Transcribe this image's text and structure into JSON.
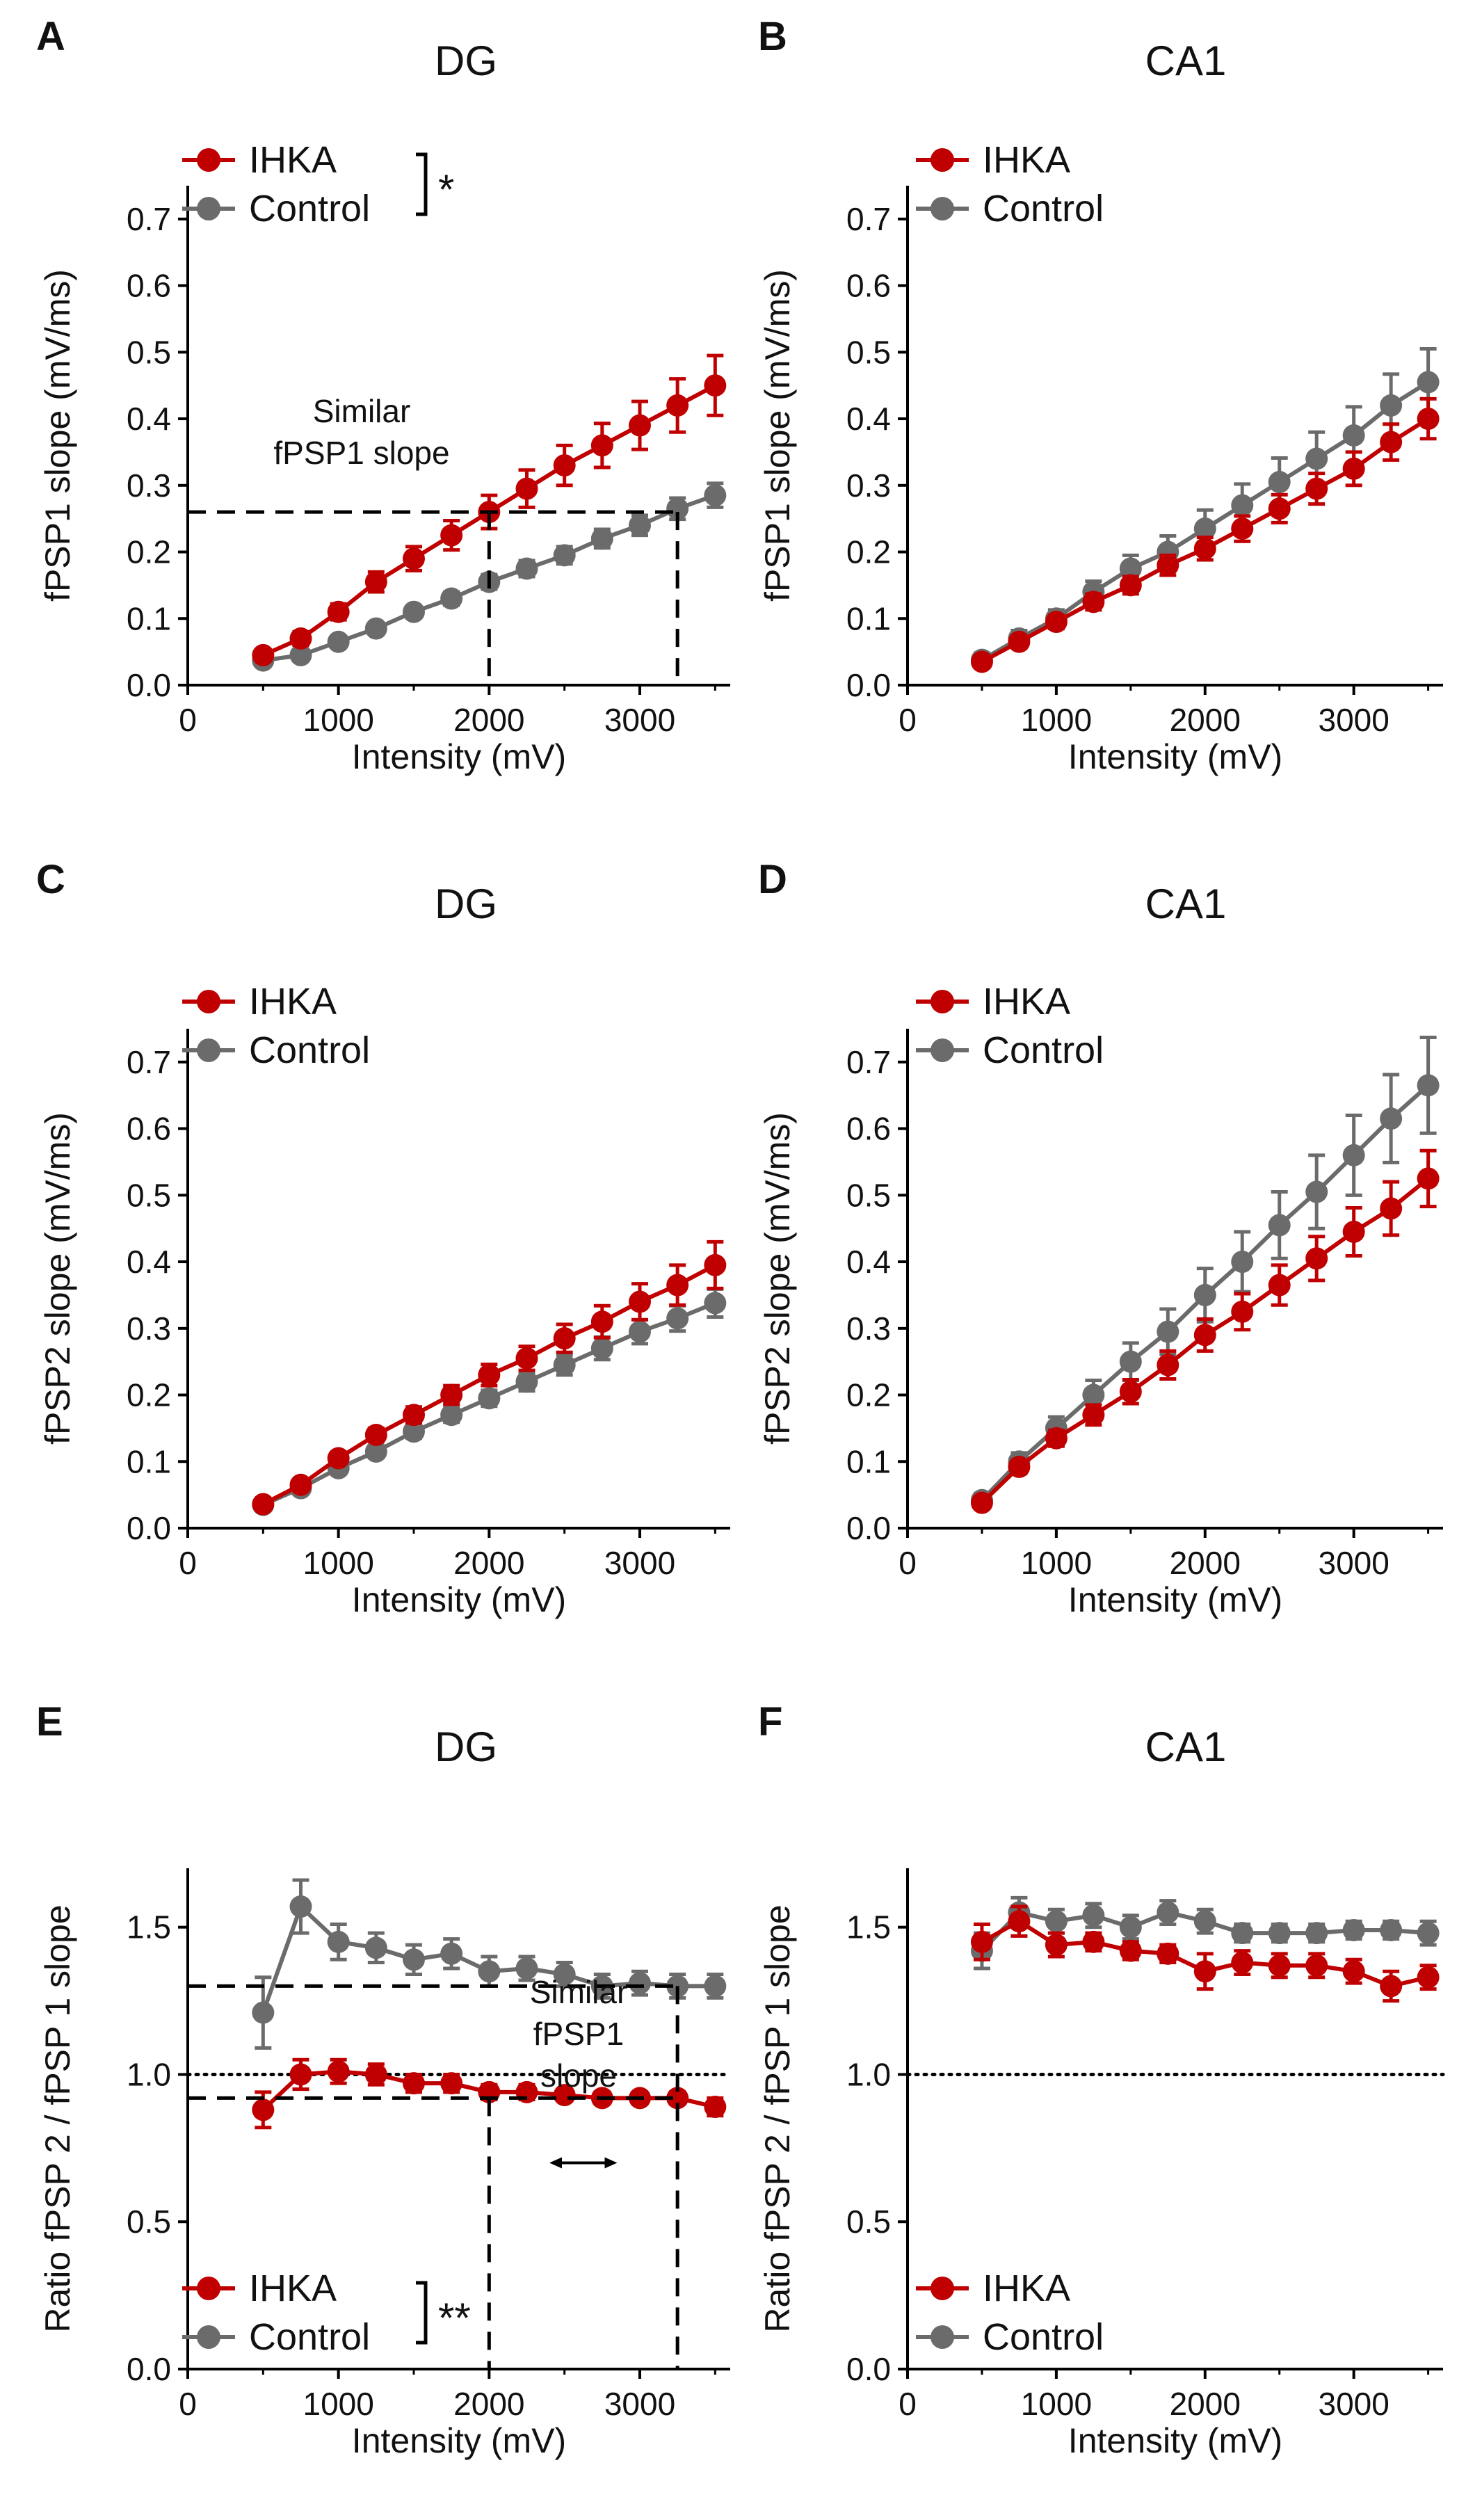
{
  "figure": {
    "colors": {
      "ihka": "#c00000",
      "control": "#6b6b6b",
      "axis": "#000000",
      "text": "#111111"
    },
    "x_axis_label": "Intensity (mV)"
  },
  "chart_data": [
    {
      "panel": "A",
      "type": "line",
      "title": "DG",
      "xlabel": "Intensity (mV)",
      "ylabel": "fPSP1 slope (mV/ms)",
      "xlim": [
        0,
        3600
      ],
      "ylim": [
        0,
        0.75
      ],
      "xticks": [
        0,
        1000,
        2000,
        3000
      ],
      "xtick_labels": [
        "0",
        "1000",
        "2000",
        "3000"
      ],
      "yticks": [
        0,
        0.1,
        0.2,
        0.3,
        0.4,
        0.5,
        0.6,
        0.7
      ],
      "ytick_labels": [
        "0.0",
        "0.1",
        "0.2",
        "0.3",
        "0.4",
        "0.5",
        "0.6",
        "0.7"
      ],
      "x": [
        500,
        750,
        1000,
        1250,
        1500,
        1750,
        2000,
        2250,
        2500,
        2750,
        3000,
        3250,
        3500
      ],
      "series": [
        {
          "name": "IHKA",
          "color": "#c00000",
          "values": [
            0.045,
            0.07,
            0.11,
            0.155,
            0.19,
            0.225,
            0.26,
            0.295,
            0.33,
            0.36,
            0.39,
            0.42,
            0.45
          ],
          "errors": [
            0.008,
            0.01,
            0.012,
            0.015,
            0.018,
            0.022,
            0.025,
            0.028,
            0.03,
            0.033,
            0.036,
            0.04,
            0.045
          ]
        },
        {
          "name": "Control",
          "color": "#6b6b6b",
          "values": [
            0.037,
            0.045,
            0.065,
            0.085,
            0.11,
            0.13,
            0.155,
            0.175,
            0.195,
            0.22,
            0.24,
            0.265,
            0.285
          ],
          "errors": [
            0.005,
            0.006,
            0.007,
            0.008,
            0.009,
            0.01,
            0.011,
            0.012,
            0.013,
            0.014,
            0.015,
            0.016,
            0.018
          ]
        }
      ],
      "legend": {
        "position": "top-left",
        "entries": [
          "IHKA",
          "Control"
        ]
      },
      "significance": "*",
      "annotations": [
        "Similar",
        "fPSP1 slope"
      ],
      "reference_lines": {
        "y_dashed": 0.26,
        "x_dashed": [
          2000,
          3250
        ]
      }
    },
    {
      "panel": "B",
      "type": "line",
      "title": "CA1",
      "xlabel": "Intensity (mV)",
      "ylabel": "fPSP1 slope (mV/ms)",
      "xlim": [
        0,
        3600
      ],
      "ylim": [
        0,
        0.75
      ],
      "xticks": [
        0,
        1000,
        2000,
        3000
      ],
      "xtick_labels": [
        "0",
        "1000",
        "2000",
        "3000"
      ],
      "yticks": [
        0,
        0.1,
        0.2,
        0.3,
        0.4,
        0.5,
        0.6,
        0.7
      ],
      "ytick_labels": [
        "0.0",
        "0.1",
        "0.2",
        "0.3",
        "0.4",
        "0.5",
        "0.6",
        "0.7"
      ],
      "x": [
        500,
        750,
        1000,
        1250,
        1500,
        1750,
        2000,
        2250,
        2500,
        2750,
        3000,
        3250,
        3500
      ],
      "series": [
        {
          "name": "IHKA",
          "color": "#c00000",
          "values": [
            0.035,
            0.065,
            0.095,
            0.125,
            0.15,
            0.18,
            0.205,
            0.235,
            0.265,
            0.295,
            0.325,
            0.365,
            0.4
          ],
          "errors": [
            0.008,
            0.009,
            0.01,
            0.012,
            0.013,
            0.015,
            0.017,
            0.019,
            0.021,
            0.023,
            0.025,
            0.027,
            0.03
          ]
        },
        {
          "name": "Control",
          "color": "#6b6b6b",
          "values": [
            0.038,
            0.07,
            0.1,
            0.14,
            0.175,
            0.2,
            0.235,
            0.27,
            0.305,
            0.34,
            0.375,
            0.42,
            0.455
          ],
          "errors": [
            0.01,
            0.012,
            0.013,
            0.016,
            0.02,
            0.024,
            0.028,
            0.032,
            0.036,
            0.04,
            0.043,
            0.047,
            0.05
          ]
        }
      ],
      "legend": {
        "position": "top-left",
        "entries": [
          "IHKA",
          "Control"
        ]
      }
    },
    {
      "panel": "C",
      "type": "line",
      "title": "DG",
      "xlabel": "Intensity (mV)",
      "ylabel": "fPSP2 slope (mV/ms)",
      "xlim": [
        0,
        3600
      ],
      "ylim": [
        0,
        0.75
      ],
      "xticks": [
        0,
        1000,
        2000,
        3000
      ],
      "xtick_labels": [
        "0",
        "1000",
        "2000",
        "3000"
      ],
      "yticks": [
        0,
        0.1,
        0.2,
        0.3,
        0.4,
        0.5,
        0.6,
        0.7
      ],
      "ytick_labels": [
        "0.0",
        "0.1",
        "0.2",
        "0.3",
        "0.4",
        "0.5",
        "0.6",
        "0.7"
      ],
      "x": [
        500,
        750,
        1000,
        1250,
        1500,
        1750,
        2000,
        2250,
        2500,
        2750,
        3000,
        3250,
        3500
      ],
      "series": [
        {
          "name": "IHKA",
          "color": "#c00000",
          "values": [
            0.036,
            0.065,
            0.105,
            0.14,
            0.17,
            0.2,
            0.23,
            0.255,
            0.285,
            0.31,
            0.34,
            0.365,
            0.395
          ],
          "errors": [
            0.004,
            0.006,
            0.008,
            0.01,
            0.012,
            0.014,
            0.016,
            0.018,
            0.021,
            0.024,
            0.027,
            0.03,
            0.035
          ]
        },
        {
          "name": "Control",
          "color": "#6b6b6b",
          "values": [
            0.035,
            0.06,
            0.09,
            0.115,
            0.145,
            0.17,
            0.195,
            0.22,
            0.245,
            0.27,
            0.295,
            0.315,
            0.338
          ],
          "errors": [
            0.004,
            0.005,
            0.006,
            0.008,
            0.01,
            0.011,
            0.012,
            0.014,
            0.015,
            0.017,
            0.018,
            0.019,
            0.021
          ]
        }
      ],
      "legend": {
        "position": "top-left",
        "entries": [
          "IHKA",
          "Control"
        ]
      }
    },
    {
      "panel": "D",
      "type": "line",
      "title": "CA1",
      "xlabel": "Intensity (mV)",
      "ylabel": "fPSP2 slope (mV/ms)",
      "xlim": [
        0,
        3600
      ],
      "ylim": [
        0,
        0.75
      ],
      "xticks": [
        0,
        1000,
        2000,
        3000
      ],
      "xtick_labels": [
        "0",
        "1000",
        "2000",
        "3000"
      ],
      "yticks": [
        0,
        0.1,
        0.2,
        0.3,
        0.4,
        0.5,
        0.6,
        0.7
      ],
      "ytick_labels": [
        "0.0",
        "0.1",
        "0.2",
        "0.3",
        "0.4",
        "0.5",
        "0.6",
        "0.7"
      ],
      "x": [
        500,
        750,
        1000,
        1250,
        1500,
        1750,
        2000,
        2250,
        2500,
        2750,
        3000,
        3250,
        3500
      ],
      "series": [
        {
          "name": "IHKA",
          "color": "#c00000",
          "values": [
            0.038,
            0.092,
            0.135,
            0.17,
            0.205,
            0.245,
            0.29,
            0.325,
            0.365,
            0.405,
            0.445,
            0.48,
            0.525
          ],
          "errors": [
            0.008,
            0.01,
            0.012,
            0.015,
            0.018,
            0.021,
            0.024,
            0.027,
            0.03,
            0.033,
            0.036,
            0.04,
            0.042
          ]
        },
        {
          "name": "Control",
          "color": "#6b6b6b",
          "values": [
            0.042,
            0.1,
            0.15,
            0.2,
            0.25,
            0.295,
            0.35,
            0.4,
            0.455,
            0.505,
            0.56,
            0.615,
            0.665
          ],
          "errors": [
            0.01,
            0.013,
            0.017,
            0.022,
            0.028,
            0.034,
            0.04,
            0.045,
            0.05,
            0.055,
            0.06,
            0.066,
            0.072
          ]
        }
      ],
      "legend": {
        "position": "top-left",
        "entries": [
          "IHKA",
          "Control"
        ]
      }
    },
    {
      "panel": "E",
      "type": "line",
      "title": "DG",
      "xlabel": "Intensity (mV)",
      "ylabel": "Ratio fPSP 2 / fPSP 1 slope",
      "xlim": [
        0,
        3600
      ],
      "ylim": [
        0,
        1.7
      ],
      "xticks": [
        0,
        1000,
        2000,
        3000
      ],
      "xtick_labels": [
        "0",
        "1000",
        "2000",
        "3000"
      ],
      "yticks": [
        0,
        0.5,
        1.0,
        1.5
      ],
      "ytick_labels": [
        "0.0",
        "0.5",
        "1.0",
        "1.5"
      ],
      "x": [
        500,
        750,
        1000,
        1250,
        1500,
        1750,
        2000,
        2250,
        2500,
        2750,
        3000,
        3250,
        3500
      ],
      "series": [
        {
          "name": "IHKA",
          "color": "#c00000",
          "values": [
            0.88,
            1.0,
            1.01,
            1.0,
            0.97,
            0.97,
            0.94,
            0.94,
            0.93,
            0.92,
            0.92,
            0.92,
            0.89
          ],
          "errors": [
            0.06,
            0.05,
            0.04,
            0.035,
            0.03,
            0.03,
            0.025,
            0.025,
            0.02,
            0.02,
            0.02,
            0.02,
            0.03
          ]
        },
        {
          "name": "Control",
          "color": "#6b6b6b",
          "values": [
            1.21,
            1.57,
            1.45,
            1.43,
            1.39,
            1.41,
            1.35,
            1.36,
            1.34,
            1.3,
            1.31,
            1.3,
            1.3
          ],
          "errors": [
            0.12,
            0.09,
            0.06,
            0.05,
            0.05,
            0.05,
            0.05,
            0.04,
            0.04,
            0.04,
            0.04,
            0.04,
            0.04
          ]
        }
      ],
      "legend": {
        "position": "bottom-left",
        "entries": [
          "IHKA",
          "Control"
        ]
      },
      "significance": "**",
      "annotations": [
        "Similar",
        "fPSP1",
        "slope"
      ],
      "reference_lines": {
        "y_dotted": 1.0,
        "y_dashed": [
          1.3,
          0.92
        ],
        "x_dashed": [
          2000,
          3250
        ],
        "arrow_x": [
          2400,
          2850
        ]
      }
    },
    {
      "panel": "F",
      "type": "line",
      "title": "CA1",
      "xlabel": "Intensity (mV)",
      "ylabel": "Ratio fPSP 2 / fPSP 1 slope",
      "xlim": [
        0,
        3600
      ],
      "ylim": [
        0,
        1.7
      ],
      "xticks": [
        0,
        1000,
        2000,
        3000
      ],
      "xtick_labels": [
        "0",
        "1000",
        "2000",
        "3000"
      ],
      "yticks": [
        0,
        0.5,
        1.0,
        1.5
      ],
      "ytick_labels": [
        "0.0",
        "0.5",
        "1.0",
        "1.5"
      ],
      "x": [
        500,
        750,
        1000,
        1250,
        1500,
        1750,
        2000,
        2250,
        2500,
        2750,
        3000,
        3250,
        3500
      ],
      "series": [
        {
          "name": "IHKA",
          "color": "#c00000",
          "values": [
            1.45,
            1.52,
            1.44,
            1.45,
            1.42,
            1.41,
            1.35,
            1.38,
            1.37,
            1.37,
            1.35,
            1.3,
            1.33
          ],
          "errors": [
            0.06,
            0.05,
            0.04,
            0.03,
            0.03,
            0.03,
            0.06,
            0.04,
            0.04,
            0.04,
            0.04,
            0.05,
            0.04
          ]
        },
        {
          "name": "Control",
          "color": "#6b6b6b",
          "values": [
            1.42,
            1.55,
            1.52,
            1.54,
            1.5,
            1.55,
            1.52,
            1.48,
            1.48,
            1.48,
            1.49,
            1.49,
            1.48
          ],
          "errors": [
            0.06,
            0.05,
            0.04,
            0.04,
            0.04,
            0.04,
            0.04,
            0.03,
            0.03,
            0.03,
            0.03,
            0.03,
            0.04
          ]
        }
      ],
      "legend": {
        "position": "bottom-left",
        "entries": [
          "IHKA",
          "Control"
        ]
      },
      "reference_lines": {
        "y_dotted": 1.0
      }
    }
  ]
}
